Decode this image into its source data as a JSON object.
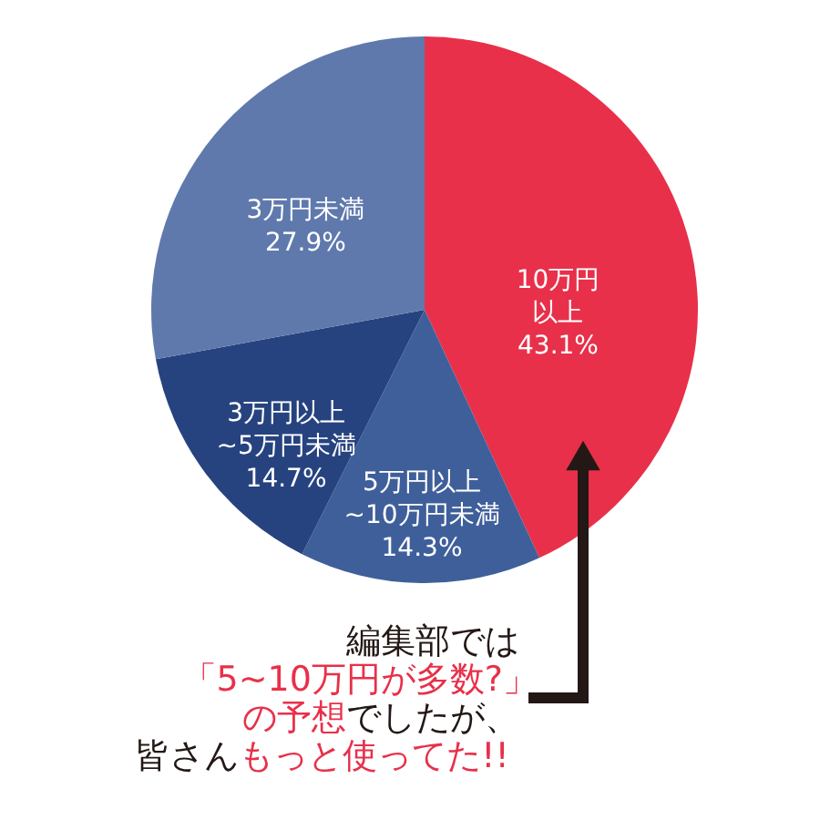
{
  "chart_data": {
    "type": "pie",
    "categories": [
      "10万円以上",
      "5万円以上~10万円未満",
      "3万円以上~5万円未満",
      "3万円未満"
    ],
    "values": [
      43.1,
      14.3,
      14.7,
      27.9
    ],
    "value_labels": [
      "43.1%",
      "14.3%",
      "14.7%",
      "27.9%"
    ],
    "colors": [
      "#e8304a",
      "#3f5f9a",
      "#27437f",
      "#5f79ad"
    ],
    "annotations": [
      "編集部では",
      "「5~10万円が多数?」",
      "の予想",
      "でしたが、",
      "皆さん",
      "もっと使ってた!!"
    ],
    "legend": false
  }
}
